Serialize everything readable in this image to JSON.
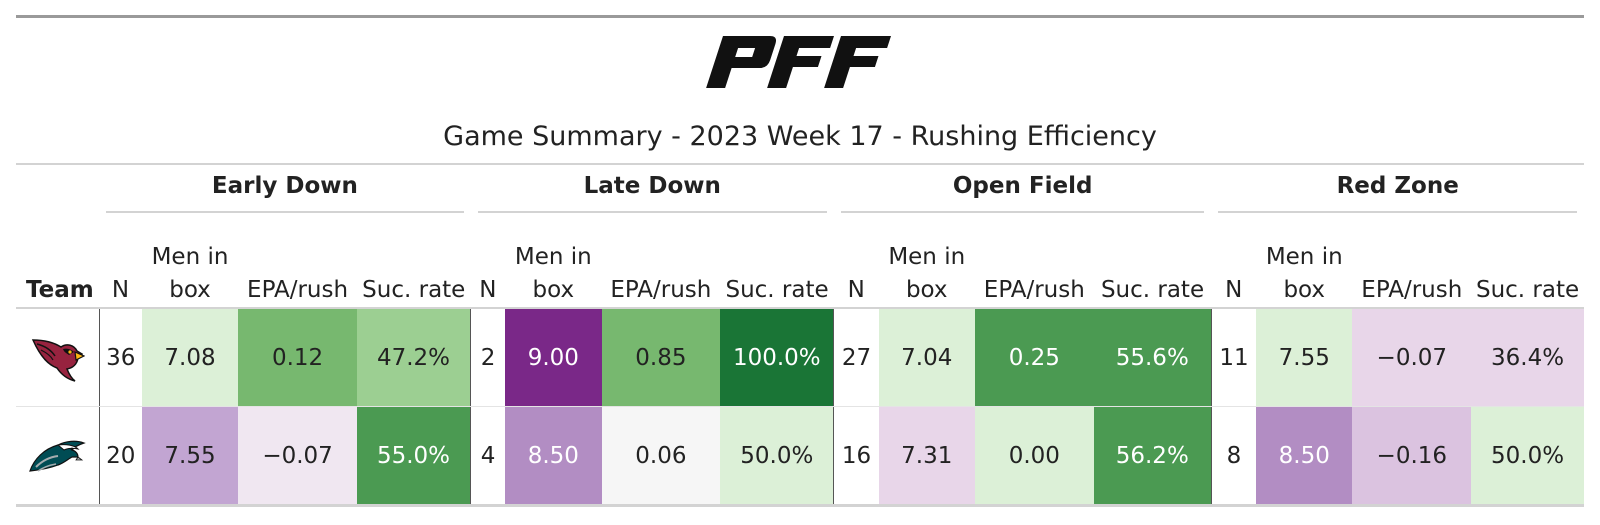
{
  "brand": {
    "logo": "pff-logo"
  },
  "title": "Game Summary - 2023 Week 17 - Rushing Efficiency",
  "groups": [
    "Early Down",
    "Late Down",
    "Open Field",
    "Red Zone"
  ],
  "columns": {
    "team": "Team",
    "n": "N",
    "men_in_box_line1": "Men in",
    "men_in_box_line2": "box",
    "epa": "EPA/rush",
    "suc": "Suc. rate"
  },
  "rows": [
    {
      "team_logo": "arizona-cardinals-logo-icon",
      "cells": [
        {
          "text": "36",
          "bg": "#ffffff"
        },
        {
          "text": "7.08",
          "bg": "#dcf0d7"
        },
        {
          "text": "0.12",
          "bg": "#77b86f"
        },
        {
          "text": "47.2%",
          "bg": "#9ccf92"
        },
        {
          "text": "2",
          "bg": "#ffffff"
        },
        {
          "text": "9.00",
          "bg": "#7a2888",
          "light": true
        },
        {
          "text": "0.85",
          "bg": "#77b86f"
        },
        {
          "text": "100.0%",
          "bg": "#1a7536",
          "light": true
        },
        {
          "text": "27",
          "bg": "#ffffff"
        },
        {
          "text": "7.04",
          "bg": "#dcf0d7"
        },
        {
          "text": "0.25",
          "bg": "#4b9a52",
          "light": true
        },
        {
          "text": "55.6%",
          "bg": "#4b9a52",
          "light": true
        },
        {
          "text": "11",
          "bg": "#ffffff"
        },
        {
          "text": "7.55",
          "bg": "#dcf0d7"
        },
        {
          "text": "−0.07",
          "bg": "#e8d6e9"
        },
        {
          "text": "36.4%",
          "bg": "#e8d6e9"
        }
      ]
    },
    {
      "team_logo": "philadelphia-eagles-logo-icon",
      "cells": [
        {
          "text": "20",
          "bg": "#ffffff"
        },
        {
          "text": "7.55",
          "bg": "#c2a5d2"
        },
        {
          "text": "−0.07",
          "bg": "#f0e7f1"
        },
        {
          "text": "55.0%",
          "bg": "#4b9a52",
          "light": true
        },
        {
          "text": "4",
          "bg": "#ffffff"
        },
        {
          "text": "8.50",
          "bg": "#b28dc3",
          "light": true
        },
        {
          "text": "0.06",
          "bg": "#f6f6f6"
        },
        {
          "text": "50.0%",
          "bg": "#dcf0d7"
        },
        {
          "text": "16",
          "bg": "#ffffff"
        },
        {
          "text": "7.31",
          "bg": "#e8d6e9"
        },
        {
          "text": "0.00",
          "bg": "#dcf0d7"
        },
        {
          "text": "56.2%",
          "bg": "#4b9a52",
          "light": true
        },
        {
          "text": "8",
          "bg": "#ffffff"
        },
        {
          "text": "8.50",
          "bg": "#b28dc3",
          "light": true
        },
        {
          "text": "−0.16",
          "bg": "#dbc3e0"
        },
        {
          "text": "50.0%",
          "bg": "#dcf0d7"
        }
      ]
    }
  ]
}
